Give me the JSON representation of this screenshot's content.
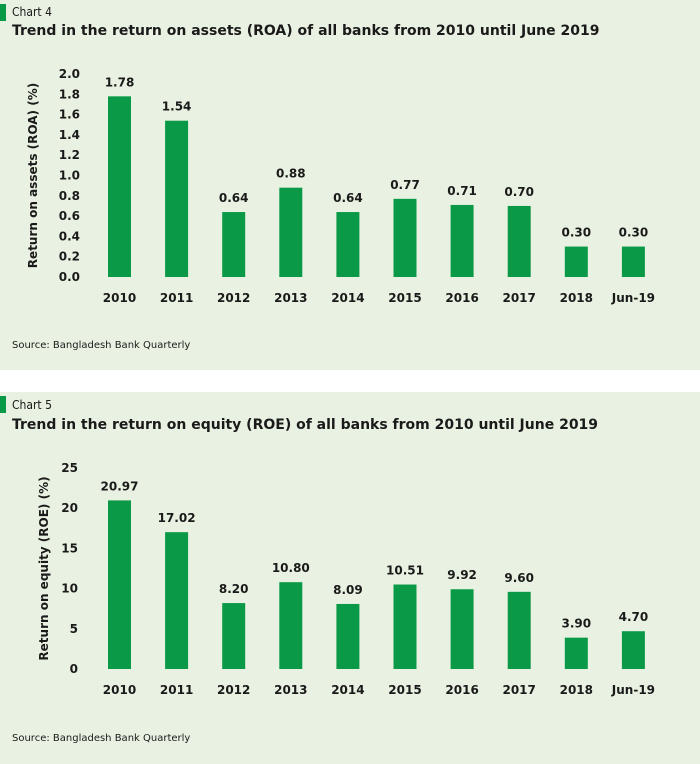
{
  "chart_data": [
    {
      "type": "bar",
      "chart_label": "Chart 4",
      "title": "Trend in the return on assets (ROA) of all banks from 2010 until June 2019",
      "ylabel": "Return on assets (ROA) (%)",
      "xlabel": "",
      "categories": [
        "2010",
        "2011",
        "2012",
        "2013",
        "2014",
        "2015",
        "2016",
        "2017",
        "2018",
        "Jun-19"
      ],
      "values": [
        1.78,
        1.54,
        0.64,
        0.88,
        0.64,
        0.77,
        0.71,
        0.7,
        0.3,
        0.3
      ],
      "value_labels": [
        "1.78",
        "1.54",
        "0.64",
        "0.88",
        "0.64",
        "0.77",
        "0.71",
        "0.70",
        "0.30",
        "0.30"
      ],
      "ylim": [
        0,
        2.0
      ],
      "yticks": [
        "0.0",
        "0.2",
        "0.4",
        "0.6",
        "0.8",
        "1.0",
        "1.2",
        "1.4",
        "1.6",
        "1.8",
        "2.0"
      ],
      "grid": false,
      "bar_color": "#0a9a47",
      "source": "Source: Bangladesh Bank Quarterly"
    },
    {
      "type": "bar",
      "chart_label": "Chart 5",
      "title": "Trend in the return on equity (ROE) of all banks from 2010 until June 2019",
      "ylabel": "Return on equity (ROE) (%)",
      "xlabel": "",
      "categories": [
        "2010",
        "2011",
        "2012",
        "2013",
        "2014",
        "2015",
        "2016",
        "2017",
        "2018",
        "Jun-19"
      ],
      "values": [
        20.97,
        17.02,
        8.2,
        10.8,
        8.09,
        10.51,
        9.92,
        9.6,
        3.9,
        4.7
      ],
      "value_labels": [
        "20.97",
        "17.02",
        "8.20",
        "10.80",
        "8.09",
        "10.51",
        "9.92",
        "9.60",
        "3.90",
        "4.70"
      ],
      "ylim": [
        0,
        25
      ],
      "yticks": [
        "0",
        "5",
        "10",
        "15",
        "20",
        "25"
      ],
      "grid": false,
      "bar_color": "#0a9a47",
      "source": "Source: Bangladesh Bank Quarterly"
    }
  ]
}
